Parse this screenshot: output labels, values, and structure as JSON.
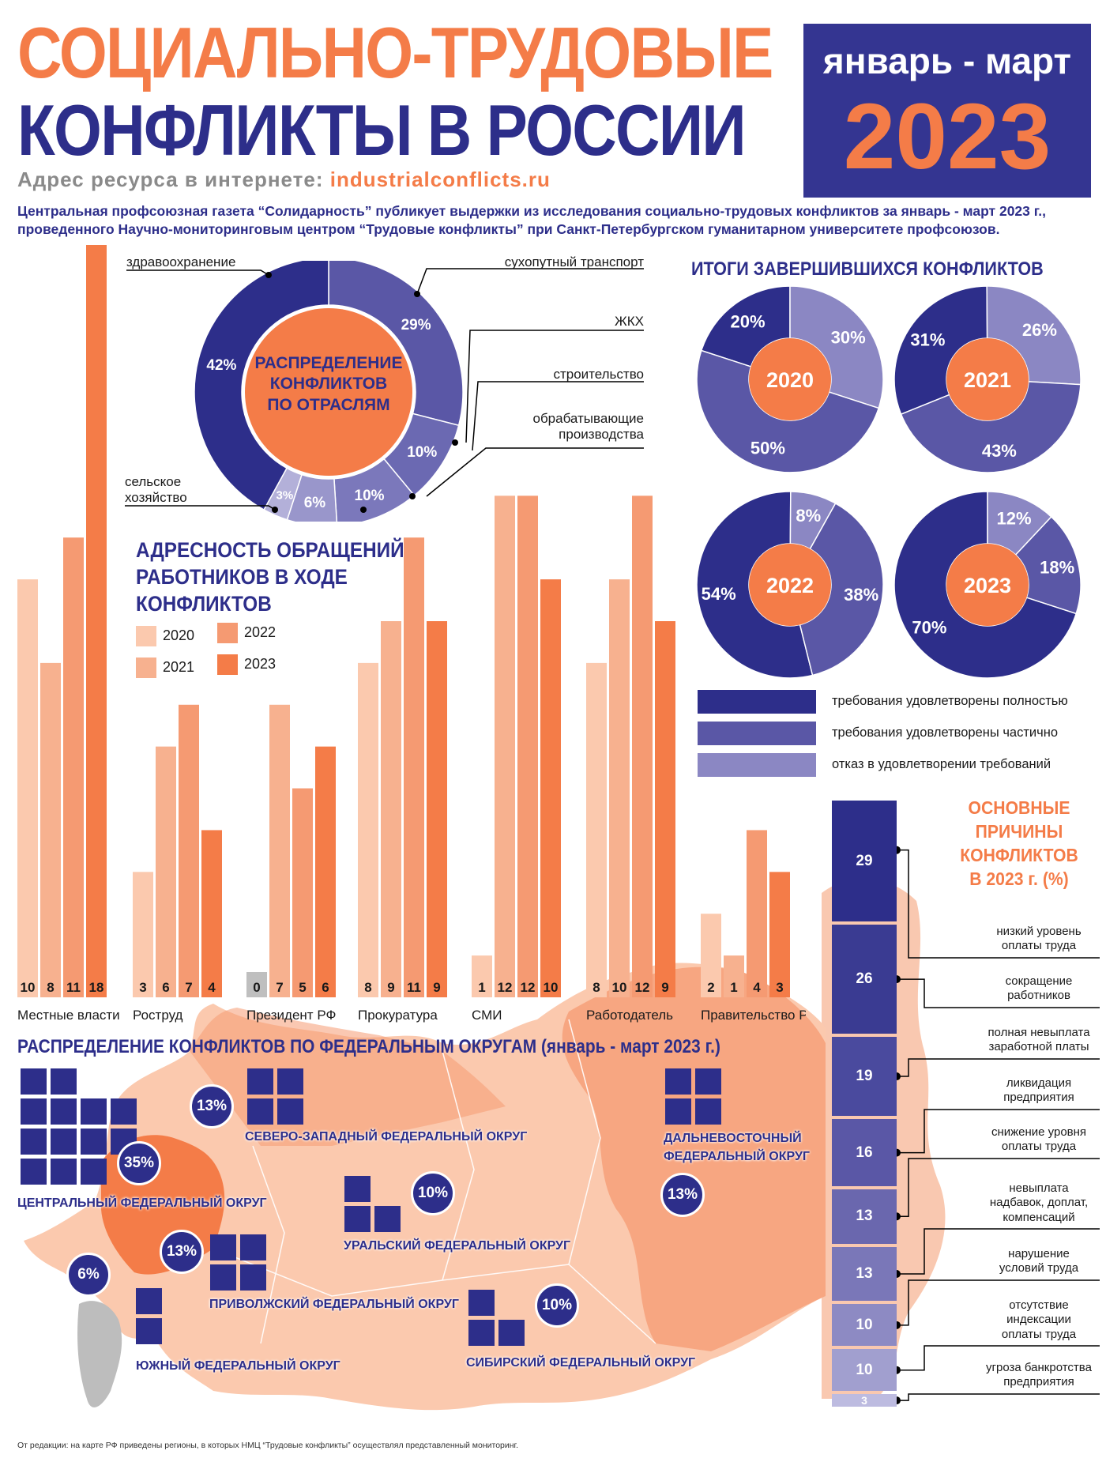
{
  "header": {
    "title_line1": "СОЦИАЛЬНО-ТРУДОВЫЕ",
    "title_line2": "КОНФЛИКТЫ В РОССИИ",
    "period": "январь - март",
    "year": "2023",
    "address_label": "Адрес ресурса в интернете: ",
    "address_url": "industrialconflicts.ru",
    "intro": "Центральная профсоюзная газета “Солидарность” публикует выдержки из исследования социально-трудовых конфликтов за январь - март 2023 г., проведенного Научно-мониторинговым центром “Трудовые конфликты” при Санкт-Петербургском гуманитарном университете профсоюзов."
  },
  "colors": {
    "navy": "#2d2e8a",
    "violet": "#5a57a6",
    "lilac": "#8b87c3",
    "pale_lilac": "#c3c0e0",
    "orange": "#f47c48",
    "orange_mid": "#f59a72",
    "peach": "#f7b18f",
    "peach_light": "#fbc9ae",
    "grey": "#bfbfbf"
  },
  "chart_data": [
    {
      "id": "industries",
      "type": "pie",
      "title": "РАСПРЕДЕЛЕНИЕ КОНФЛИКТОВ ПО ОТРАСЛЯМ",
      "slices": [
        {
          "label": "сухопутный транспорт",
          "value": 29,
          "pct": "29%",
          "color": "#5a57a6"
        },
        {
          "label": "ЖКХ",
          "value": 10,
          "pct": "10%",
          "color": "#6b69b2"
        },
        {
          "label": "строительство",
          "value": 10,
          "pct": "10%",
          "color": "#7b78bb"
        },
        {
          "label": "обрабатывающие производства",
          "value": 6,
          "pct": "6%",
          "color": "#9996cb"
        },
        {
          "label": "сельское хозяйство",
          "value": 3,
          "pct": "3%",
          "color": "#b3b0d9"
        },
        {
          "label": "здравоохранение",
          "value": 42,
          "pct": "42%",
          "color": "#2d2e8a"
        }
      ]
    },
    {
      "id": "outcomes",
      "type": "pie",
      "title": "ИТОГИ ЗАВЕРШИВШИХСЯ КОНФЛИКТОВ",
      "legend": [
        {
          "label": "требования удовлетворены полностью",
          "color": "#2d2e8a"
        },
        {
          "label": "требования удовлетворены частично",
          "color": "#5a57a6"
        },
        {
          "label": "отказ в удовлетворении  требований",
          "color": "#8b87c3"
        }
      ],
      "years": [
        {
          "year": "2020",
          "full": 20,
          "partial": 50,
          "refused": 30
        },
        {
          "year": "2021",
          "full": 31,
          "partial": 43,
          "refused": 26
        },
        {
          "year": "2022",
          "full": 54,
          "partial": 38,
          "refused": 8
        },
        {
          "year": "2023",
          "full": 70,
          "partial": 18,
          "refused": 12
        }
      ]
    },
    {
      "id": "addressees",
      "type": "bar",
      "title": "АДРЕСНОСТЬ ОБРАЩЕНИЙ РАБОТНИКОВ В ХОДЕ КОНФЛИКТОВ",
      "categories": [
        "Местные власти",
        "Роструд",
        "Президент РФ",
        "Прокуратура",
        "СМИ",
        "Работодатель",
        "Правительство РФ"
      ],
      "series": [
        {
          "name": "2020",
          "color": "#fbc9ae",
          "values": [
            10,
            3,
            0,
            8,
            1,
            8,
            2
          ]
        },
        {
          "name": "2021",
          "color": "#f7b18f",
          "values": [
            8,
            6,
            7,
            9,
            12,
            10,
            1
          ]
        },
        {
          "name": "2022",
          "color": "#f59a72",
          "values": [
            11,
            7,
            5,
            11,
            12,
            12,
            4
          ]
        },
        {
          "name": "2023",
          "color": "#f47c48",
          "values": [
            18,
            4,
            6,
            9,
            10,
            9,
            3
          ]
        }
      ],
      "ylim": [
        0,
        18
      ]
    },
    {
      "id": "causes",
      "type": "bar",
      "title": "ОСНОВНЫЕ ПРИЧИНЫ КОНФЛИКТОВ В 2023 г. (%)",
      "categories": [
        "низкий уровень оплаты труда",
        "сокращение работников",
        "полная невыплата заработной платы",
        "ликвидация предприятия",
        "снижение уровня оплаты труда",
        "невыплата надбавок, доплат, компенсаций",
        "нарушение условий труда",
        "отсутствие индексации оплаты труда",
        "угроза банкротства предприятия"
      ],
      "values": [
        29,
        26,
        19,
        16,
        13,
        13,
        10,
        10,
        3
      ],
      "colors": [
        "#2d2e8a",
        "#3a3b92",
        "#4a4a9e",
        "#5a57a6",
        "#6a67ae",
        "#7a77b8",
        "#8d8ac3",
        "#a19fcf",
        "#bdbbe0"
      ]
    },
    {
      "id": "districts",
      "type": "table",
      "title": "РАСПРЕДЕЛЕНИЕ КОНФЛИКТОВ ПО ФЕДЕРАЛЬНЫМ ОКРУГАМ (январь - март 2023 г.)",
      "rows": [
        {
          "name": "ЦЕНТРАЛЬНЫЙ ФЕДЕРАЛЬНЫЙ ОКРУГ",
          "pct": "35%",
          "squares": 11
        },
        {
          "name": "СЕВЕРО-ЗАПАДНЫЙ ФЕДЕРАЛЬНЫЙ ОКРУГ",
          "pct": "13%",
          "squares": 4
        },
        {
          "name": "ДАЛЬНЕВОСТОЧНЫЙ ФЕДЕРАЛЬНЫЙ ОКРУГ",
          "pct": "13%",
          "squares": 4
        },
        {
          "name": "УРАЛЬСКИЙ ФЕДЕРАЛЬНЫЙ ОКРУГ",
          "pct": "10%",
          "squares": 3
        },
        {
          "name": "ПРИВОЛЖСКИЙ ФЕДЕРАЛЬНЫЙ ОКРУГ",
          "pct": "13%",
          "squares": 4
        },
        {
          "name": "ЮЖНЫЙ ФЕДЕРАЛЬНЫЙ ОКРУГ",
          "pct": "6%",
          "squares": 2
        },
        {
          "name": "СИБИРСКИЙ ФЕДЕРАЛЬНЫЙ ОКРУГ",
          "pct": "10%",
          "squares": 3
        }
      ]
    }
  ],
  "labels": {
    "pie_center": [
      "РАСПРЕДЕЛЕНИЕ",
      "КОНФЛИКТОВ",
      "ПО ОТРАСЛЯМ"
    ],
    "agr_line1": "сельское",
    "agr_line2": "хозяйство",
    "manuf_line1": "обрабатывающие",
    "manuf_line2": "производства",
    "addr_title": [
      "АДРЕСНОСТЬ ОБРАЩЕНИЙ",
      "РАБОТНИКОВ В ХОДЕ",
      "КОНФЛИКТОВ"
    ],
    "causes_title": [
      "ОСНОВНЫЕ",
      "ПРИЧИНЫ",
      "КОНФЛИКТОВ",
      "В 2023 г. (%)"
    ],
    "causes_labels": [
      [
        "низкий уровень",
        "оплаты труда"
      ],
      [
        "сокращение",
        "работников"
      ],
      [
        "полная невыплата",
        "заработной платы"
      ],
      [
        "ликвидация",
        "предприятия"
      ],
      [
        "снижение уровня",
        "оплаты труда"
      ],
      [
        "невыплата",
        "надбавок, доплат,",
        "компенсаций"
      ],
      [
        "нарушение",
        "условий труда"
      ],
      [
        "отсутствие",
        "индексации",
        "оплаты труда"
      ],
      [
        "угроза банкротства",
        "предприятия"
      ]
    ],
    "district_names": {
      "central": "ЦЕНТРАЛЬНЫЙ ФЕДЕРАЛЬНЫЙ ОКРУГ",
      "northwest": "СЕВЕРО-ЗАПАДНЫЙ ФЕДЕРАЛЬНЫЙ ОКРУГ",
      "fareast1": "ДАЛЬНЕВОСТОЧНЫЙ",
      "fareast2": "ФЕДЕРАЛЬНЫЙ ОКРУГ",
      "ural": "УРАЛЬСКИЙ ФЕДЕРАЛЬНЫЙ ОКРУГ",
      "volga": "ПРИВОЛЖСКИЙ ФЕДЕРАЛЬНЫЙ ОКРУГ",
      "south": "ЮЖНЫЙ ФЕДЕРАЛЬНЫЙ ОКРУГ",
      "siberia": "СИБИРСКИЙ ФЕДЕРАЛЬНЫЙ ОКРУГ"
    },
    "footnote": "От редакции: на карте РФ приведены регионы, в которых НМЦ “Трудовые конфликты” осуществлял представленный мониторинг."
  }
}
